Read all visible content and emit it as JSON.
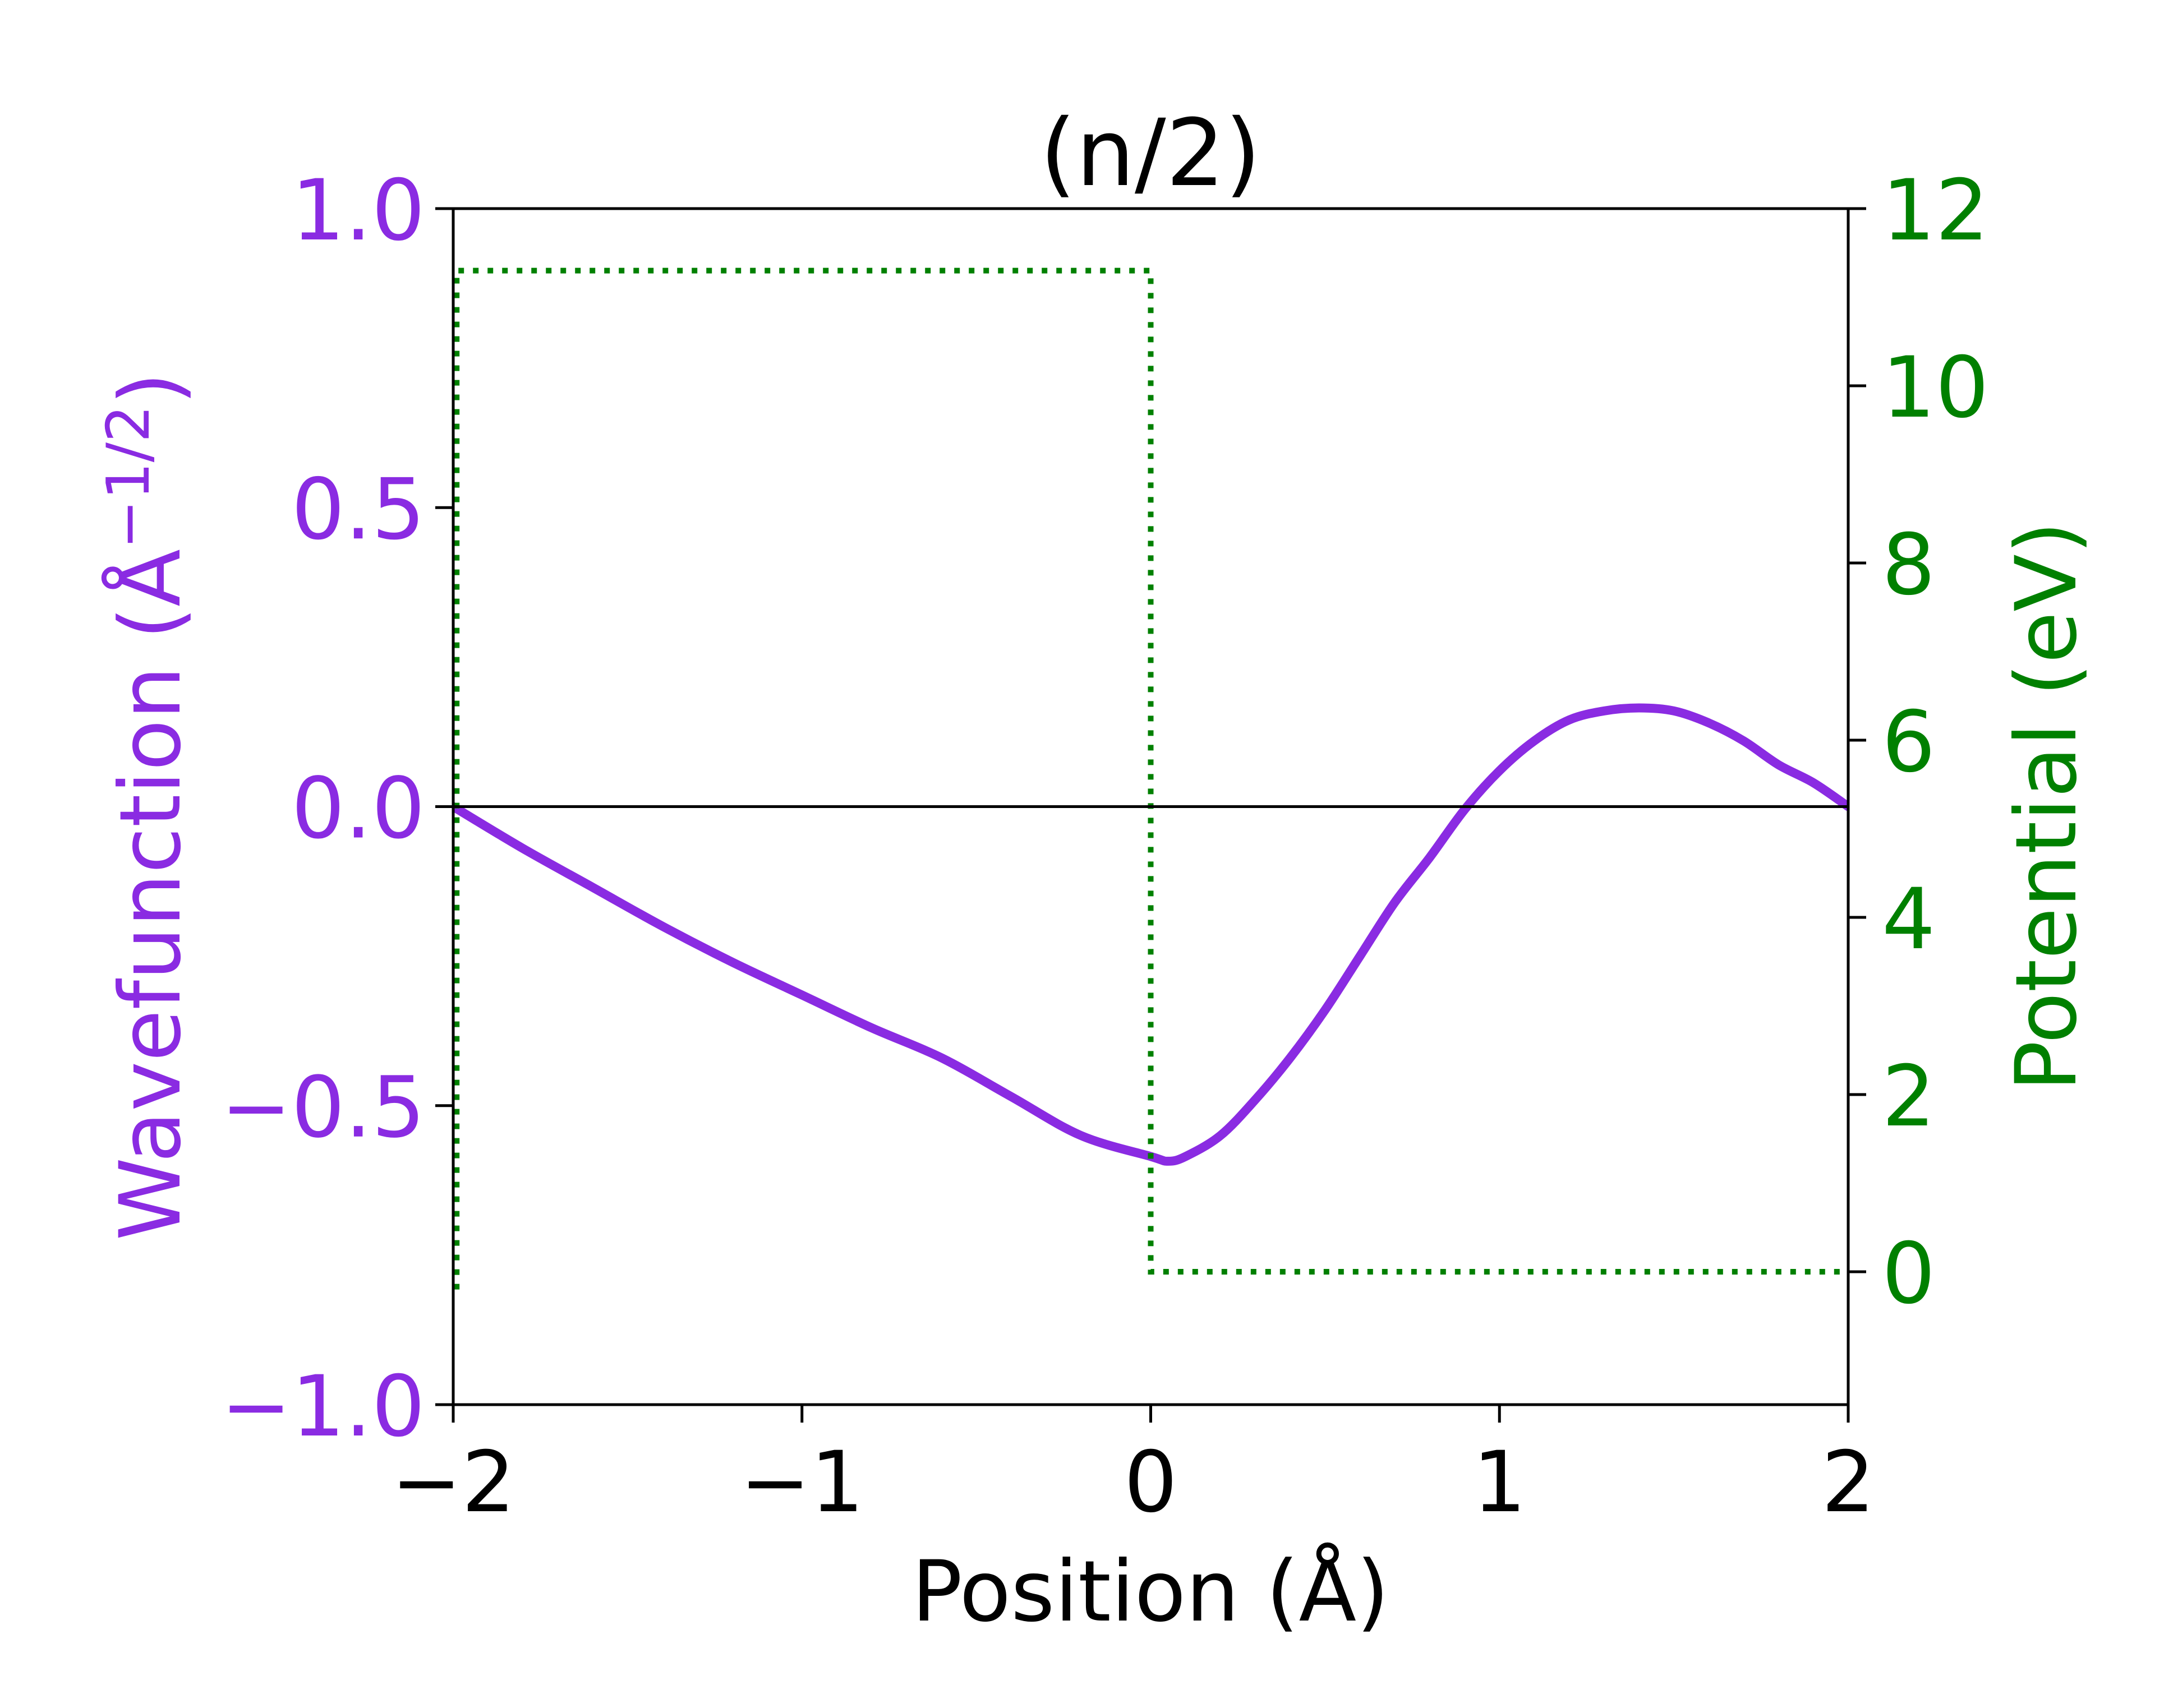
{
  "chart_data": {
    "type": "line",
    "title": "(n/2)",
    "xlabel": "Position (Å)",
    "ylabel_left": "Wavefunction (Å",
    "ylabel_left_exponent": "−1/2",
    "ylabel_left_close": ")",
    "ylabel_right": "Potential (eV)",
    "xlim": [
      -2,
      2
    ],
    "ylim_left": [
      -1.0,
      1.0
    ],
    "ylim_right": [
      -1.5,
      12
    ],
    "x_ticks": [
      -2,
      -1,
      0,
      1,
      2
    ],
    "x_tick_labels": [
      "−2",
      "−1",
      "0",
      "1",
      "2"
    ],
    "y_left_ticks": [
      -1.0,
      -0.5,
      0.0,
      0.5,
      1.0
    ],
    "y_left_tick_labels": [
      "−1.0",
      "−0.5",
      "0.0",
      "0.5",
      "1.0"
    ],
    "y_right_ticks": [
      0,
      2,
      4,
      6,
      8,
      10,
      12
    ],
    "y_right_tick_labels": [
      "0",
      "2",
      "4",
      "6",
      "8",
      "10",
      "12"
    ],
    "grid": false,
    "legend": "none",
    "zero_line": true,
    "colors": {
      "wavefunction": "#8a2be2",
      "potential": "#008000",
      "axes": "#000000"
    },
    "series": [
      {
        "axis": "left",
        "style": "solid",
        "x": [
          -2.0,
          -1.8,
          -1.6,
          -1.4,
          -1.2,
          -1.0,
          -0.8,
          -0.6,
          -0.4,
          -0.2,
          0.0,
          0.05,
          0.1,
          0.2,
          0.3,
          0.4,
          0.5,
          0.6,
          0.7,
          0.8,
          0.9,
          1.0,
          1.1,
          1.2,
          1.3,
          1.4,
          1.5,
          1.6,
          1.7,
          1.8,
          1.9,
          2.0
        ],
        "y": [
          0.0,
          -0.07,
          -0.135,
          -0.2,
          -0.26,
          -0.315,
          -0.37,
          -0.42,
          -0.485,
          -0.55,
          -0.585,
          -0.593,
          -0.585,
          -0.55,
          -0.49,
          -0.42,
          -0.34,
          -0.25,
          -0.16,
          -0.085,
          -0.005,
          0.06,
          0.11,
          0.145,
          0.16,
          0.165,
          0.16,
          0.14,
          0.11,
          0.07,
          0.04,
          0.0
        ]
      },
      {
        "axis": "right",
        "style": "dotted",
        "x": [
          -1.99,
          -1.99,
          0.0,
          0.0,
          2.0
        ],
        "y": [
          -0.2,
          11.3,
          11.3,
          0.0,
          0.0
        ]
      }
    ]
  }
}
